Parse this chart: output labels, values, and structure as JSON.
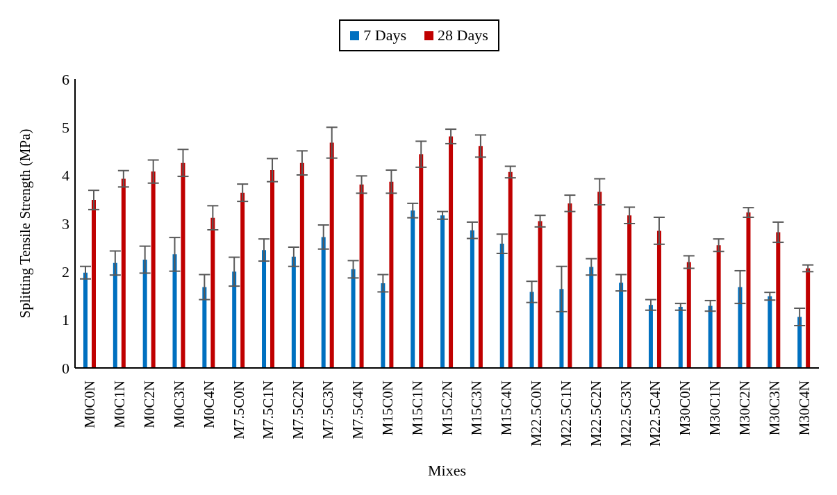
{
  "chart_data": {
    "type": "bar",
    "xlabel": "Mixes",
    "ylabel": "Splitting Tensile Strength (MPa)",
    "categories": [
      "M0C0N",
      "M0C1N",
      "M0C2N",
      "M0C3N",
      "M0C4N",
      "M7.5C0N",
      "M7.5C1N",
      "M7.5C2N",
      "M7.5C3N",
      "M7.5C4N",
      "M15C0N",
      "M15C1N",
      "M15C2N",
      "M15C3N",
      "M15C4N",
      "M22.5C0N",
      "M22.5C1N",
      "M22.5C2N",
      "M22.5C3N",
      "M22.5C4N",
      "M30C0N",
      "M30C1N",
      "M30C2N",
      "M30C3N",
      "M30C4N"
    ],
    "series": [
      {
        "name": "7 Days",
        "color": "#0070c0",
        "values": [
          1.98,
          2.18,
          2.25,
          2.36,
          1.68,
          2.0,
          2.45,
          2.31,
          2.72,
          2.05,
          1.76,
          3.27,
          3.17,
          2.86,
          2.58,
          1.58,
          1.64,
          2.1,
          1.77,
          1.31,
          1.27,
          1.29,
          1.68,
          1.49,
          1.06
        ],
        "errors": [
          0.13,
          0.25,
          0.28,
          0.35,
          0.26,
          0.3,
          0.23,
          0.2,
          0.25,
          0.18,
          0.18,
          0.15,
          0.08,
          0.17,
          0.2,
          0.22,
          0.47,
          0.17,
          0.17,
          0.11,
          0.07,
          0.11,
          0.34,
          0.08,
          0.18
        ]
      },
      {
        "name": "28 Days",
        "color": "#c00000",
        "values": [
          3.49,
          3.93,
          4.08,
          4.26,
          3.12,
          3.64,
          4.11,
          4.26,
          4.68,
          3.81,
          3.87,
          4.44,
          4.81,
          4.61,
          4.07,
          3.05,
          3.42,
          3.66,
          3.17,
          2.85,
          2.2,
          2.55,
          3.23,
          2.82,
          2.07
        ],
        "errors": [
          0.2,
          0.17,
          0.24,
          0.28,
          0.25,
          0.18,
          0.24,
          0.25,
          0.32,
          0.18,
          0.24,
          0.27,
          0.15,
          0.23,
          0.12,
          0.12,
          0.17,
          0.27,
          0.17,
          0.28,
          0.13,
          0.13,
          0.1,
          0.21,
          0.07
        ]
      }
    ],
    "ylim": [
      0,
      6
    ],
    "yticks": [
      0,
      1,
      2,
      3,
      4,
      5,
      6
    ],
    "legend": "top"
  }
}
